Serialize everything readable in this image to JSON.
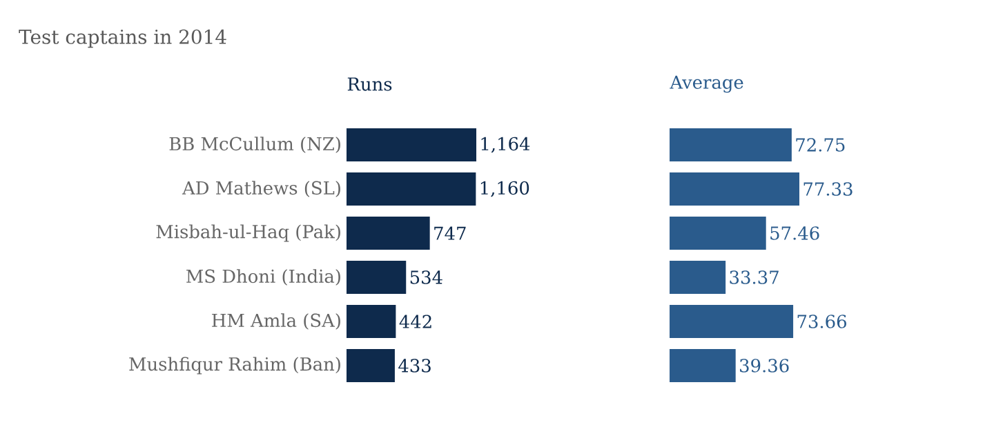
{
  "chart_data": [
    {
      "type": "bar",
      "orientation": "horizontal",
      "title": "Test captains in 2014",
      "subtitle": "Runs",
      "categories": [
        "BB McCullum (NZ)",
        "AD Mathews (SL)",
        "Misbah-ul-Haq (Pak)",
        "MS Dhoni (India)",
        "HM Amla (SA)",
        "Mushfiqur Rahim (Ban)"
      ],
      "values": [
        1164,
        1160,
        747,
        534,
        442,
        433
      ],
      "value_labels": [
        "1,164",
        "1,160",
        "747",
        "534",
        "442",
        "433"
      ],
      "color": "#0e2a4c",
      "tick_labels": "y"
    },
    {
      "type": "bar",
      "orientation": "horizontal",
      "subtitle": "Average",
      "categories": [
        null,
        null,
        null,
        null,
        null,
        null
      ],
      "values": [
        72.75,
        77.33,
        57.46,
        33.37,
        73.66,
        39.36
      ],
      "data_labels": true,
      "color": "#2a5b8c",
      "tick_labels": false
    }
  ]
}
